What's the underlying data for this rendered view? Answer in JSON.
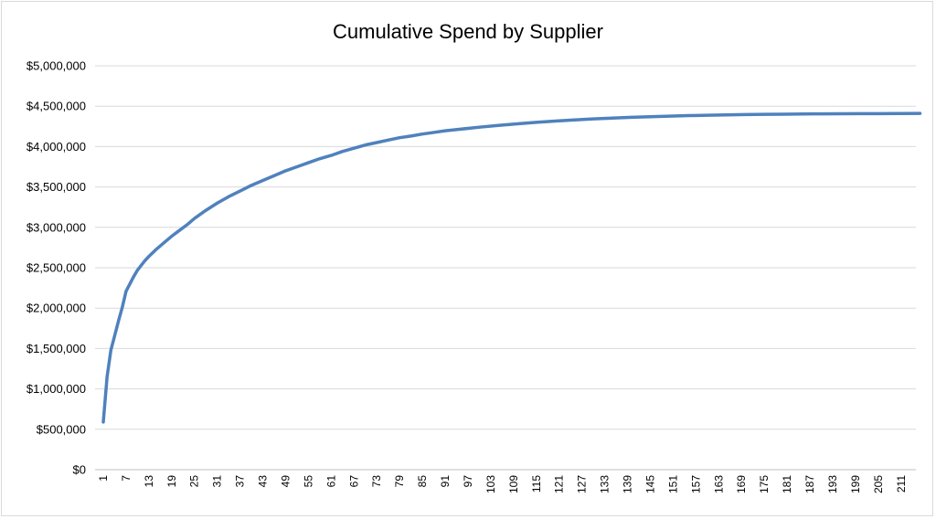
{
  "chart_data": {
    "type": "line",
    "title": "Cumulative Spend by Supplier",
    "xlabel": "",
    "ylabel": "",
    "xlim": [
      1,
      216
    ],
    "ylim": [
      0,
      5000000
    ],
    "y_ticks": [
      0,
      500000,
      1000000,
      1500000,
      2000000,
      2500000,
      3000000,
      3500000,
      4000000,
      4500000,
      5000000
    ],
    "y_tick_labels": [
      "$0",
      "$500,000",
      "$1,000,000",
      "$1,500,000",
      "$2,000,000",
      "$2,500,000",
      "$3,000,000",
      "$3,500,000",
      "$4,000,000",
      "$4,500,000",
      "$5,000,000"
    ],
    "x_tick_labels": [
      "1",
      "7",
      "13",
      "19",
      "25",
      "31",
      "37",
      "43",
      "49",
      "55",
      "61",
      "67",
      "73",
      "79",
      "85",
      "91",
      "97",
      "103",
      "109",
      "115",
      "121",
      "127",
      "133",
      "139",
      "145",
      "151",
      "157",
      "163",
      "169",
      "175",
      "181",
      "187",
      "193",
      "199",
      "205",
      "211"
    ],
    "grid": "horizontal",
    "legend": "none",
    "colors": {
      "line": "#4f81bd",
      "grid": "#d9d9d9",
      "axis": "#bfbfbf"
    },
    "series": [
      {
        "x": [
          1,
          2,
          3,
          4,
          5,
          6,
          7,
          8,
          9,
          10,
          11,
          12,
          13,
          15,
          17,
          19,
          21,
          23,
          25,
          28,
          31,
          34,
          37,
          40,
          43,
          46,
          49,
          52,
          55,
          58,
          61,
          64,
          67,
          70,
          73,
          76,
          79,
          82,
          85,
          88,
          91,
          95,
          100,
          105,
          110,
          115,
          120,
          125,
          130,
          135,
          140,
          145,
          150,
          155,
          160,
          165,
          170,
          175,
          180,
          185,
          190,
          195,
          200,
          205,
          210,
          216
        ],
        "values": [
          590000,
          1150000,
          1480000,
          1660000,
          1840000,
          2010000,
          2210000,
          2300000,
          2390000,
          2470000,
          2530000,
          2590000,
          2640000,
          2730000,
          2810000,
          2890000,
          2960000,
          3030000,
          3110000,
          3210000,
          3300000,
          3380000,
          3450000,
          3520000,
          3580000,
          3640000,
          3700000,
          3750000,
          3800000,
          3850000,
          3890000,
          3940000,
          3980000,
          4020000,
          4050000,
          4080000,
          4110000,
          4130000,
          4155000,
          4175000,
          4195000,
          4215000,
          4240000,
          4262000,
          4282000,
          4300000,
          4316000,
          4330000,
          4342000,
          4353000,
          4362000,
          4370000,
          4377000,
          4383000,
          4388000,
          4392000,
          4396000,
          4399000,
          4401000,
          4403000,
          4405000,
          4406000,
          4407000,
          4408000,
          4409000,
          4410000
        ]
      }
    ]
  }
}
